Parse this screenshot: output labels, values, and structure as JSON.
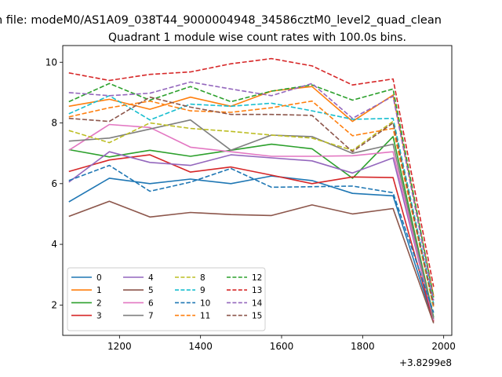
{
  "chart_data": {
    "type": "line",
    "suptitle": "n file: modeM0/AS1A09_038T44_9000004948_34586cztM0_level2_quad_clean",
    "title": "Quadrant 1 module wise count rates with 100.0s bins.",
    "xlabel": "",
    "ylabel": "",
    "x_offset_label": "+3.8299e8",
    "xlim": [
      1060,
      2020
    ],
    "ylim": [
      1.0,
      10.55
    ],
    "x_ticks": [
      1200,
      1400,
      1600,
      1800,
      2000
    ],
    "y_ticks": [
      2,
      4,
      6,
      8,
      10
    ],
    "x": [
      1075,
      1175,
      1275,
      1375,
      1475,
      1575,
      1675,
      1775,
      1875,
      1975
    ],
    "legend_position": "lower-left",
    "series": [
      {
        "name": "0",
        "color": "#1f77b4",
        "dash": "solid",
        "values": [
          5.4,
          6.18,
          6.0,
          6.15,
          6.0,
          6.25,
          6.1,
          5.68,
          5.6,
          1.45
        ]
      },
      {
        "name": "1",
        "color": "#ff7f0e",
        "dash": "solid",
        "values": [
          8.55,
          8.78,
          8.45,
          8.85,
          8.55,
          9.05,
          9.2,
          8.05,
          8.92,
          2.3
        ]
      },
      {
        "name": "2",
        "color": "#2ca02c",
        "dash": "solid",
        "values": [
          7.12,
          6.88,
          7.1,
          6.9,
          7.1,
          7.3,
          7.15,
          6.18,
          7.55,
          1.6
        ]
      },
      {
        "name": "3",
        "color": "#d62728",
        "dash": "solid",
        "values": [
          6.4,
          6.78,
          6.95,
          6.38,
          6.55,
          6.28,
          6.0,
          6.22,
          6.2,
          1.45
        ]
      },
      {
        "name": "4",
        "color": "#9467bd",
        "dash": "solid",
        "values": [
          6.05,
          7.05,
          6.7,
          6.6,
          6.95,
          6.85,
          6.75,
          6.35,
          6.85,
          1.5
        ]
      },
      {
        "name": "5",
        "color": "#8c564b",
        "dash": "solid",
        "values": [
          4.92,
          5.42,
          4.9,
          5.05,
          4.98,
          4.95,
          5.3,
          5.0,
          5.18,
          1.4
        ]
      },
      {
        "name": "6",
        "color": "#e377c2",
        "dash": "solid",
        "values": [
          7.1,
          7.95,
          7.85,
          7.2,
          7.05,
          6.9,
          6.9,
          6.92,
          7.05,
          1.5
        ]
      },
      {
        "name": "7",
        "color": "#7f7f7f",
        "dash": "solid",
        "values": [
          7.4,
          7.5,
          7.8,
          8.1,
          7.1,
          7.6,
          7.55,
          7.0,
          7.3,
          1.55
        ]
      },
      {
        "name": "8",
        "color": "#bcbd22",
        "dash": "dashed",
        "values": [
          7.75,
          7.35,
          8.0,
          7.82,
          7.72,
          7.6,
          7.5,
          7.1,
          8.05,
          1.9
        ]
      },
      {
        "name": "9",
        "color": "#17becf",
        "dash": "dashed",
        "values": [
          8.3,
          8.9,
          8.1,
          8.62,
          8.55,
          8.65,
          8.4,
          8.12,
          8.15,
          2.05
        ]
      },
      {
        "name": "10",
        "color": "#1f77b4",
        "dash": "dashed",
        "values": [
          6.1,
          6.6,
          5.75,
          6.05,
          6.5,
          5.88,
          5.9,
          5.92,
          5.7,
          1.75
        ]
      },
      {
        "name": "11",
        "color": "#ff7f0e",
        "dash": "dashed",
        "values": [
          8.2,
          8.5,
          8.72,
          8.4,
          8.35,
          8.5,
          8.72,
          7.58,
          7.82,
          1.95
        ]
      },
      {
        "name": "12",
        "color": "#2ca02c",
        "dash": "dashed",
        "values": [
          8.7,
          9.3,
          8.75,
          9.2,
          8.7,
          9.05,
          9.25,
          8.75,
          9.12,
          2.25
        ]
      },
      {
        "name": "13",
        "color": "#d62728",
        "dash": "dashed",
        "values": [
          9.65,
          9.4,
          9.6,
          9.68,
          9.95,
          10.12,
          9.88,
          9.25,
          9.45,
          2.6
        ]
      },
      {
        "name": "14",
        "color": "#9467bd",
        "dash": "dashed",
        "values": [
          9.0,
          8.9,
          8.98,
          9.35,
          9.12,
          8.9,
          9.3,
          8.15,
          8.88,
          2.15
        ]
      },
      {
        "name": "15",
        "color": "#8c564b",
        "dash": "dashed",
        "values": [
          8.15,
          8.05,
          8.85,
          8.52,
          8.28,
          8.28,
          8.25,
          7.05,
          8.0,
          2.0
        ]
      }
    ]
  }
}
